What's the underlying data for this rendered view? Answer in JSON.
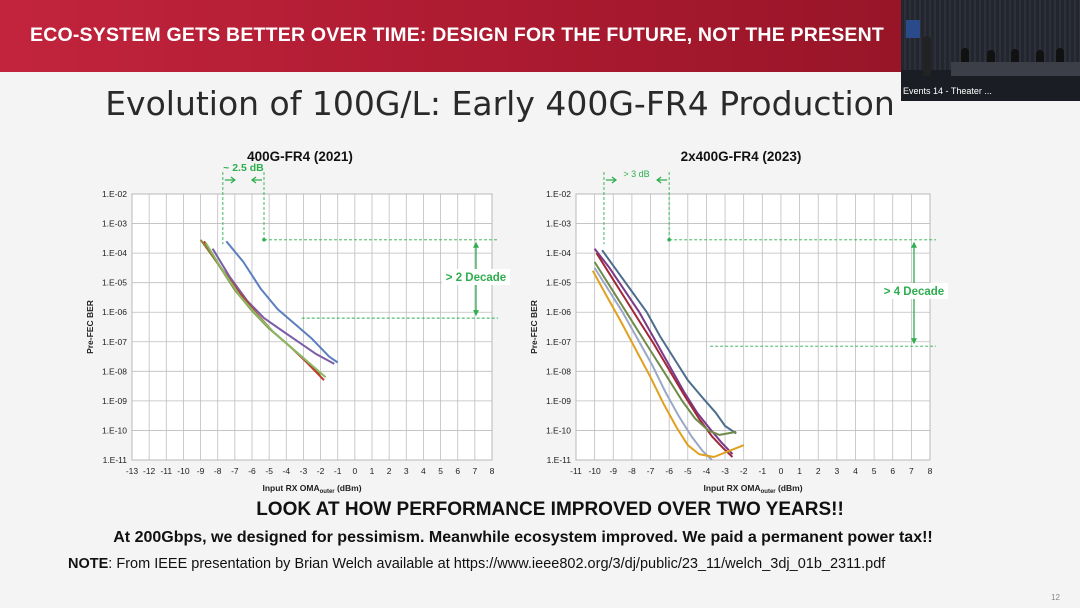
{
  "banner": {
    "title": "ECO-SYSTEM  GETS BETTER OVER TIME: DESIGN FOR THE FUTURE, NOT THE PRESENT"
  },
  "video": {
    "caption": "Events 14 - Theater ..."
  },
  "slide": {
    "title": "Evolution of 100G/L: Early 400G-FR4 Production",
    "headline": "LOOK AT HOW PERFORMANCE IMPROVED OVER TWO YEARS!!",
    "subline": "At 200Gbps, we designed for pessimism. Meanwhile ecosystem improved. We paid a permanent power tax!!",
    "note_label": "NOTE",
    "note_text": ": From IEEE presentation by Brian Welch available at https://www.ieee802.org/3/dj/public/23_11/welch_3dj_01b_2311.pdf",
    "page_number": "12"
  },
  "colors": {
    "banner": "#b01e33",
    "annotation": "#2eae4f",
    "grid": "#bdbdbd"
  },
  "chart_data": [
    {
      "type": "line",
      "title": "400G-FR4 (2021)",
      "xlabel_main": "Input RX OMA",
      "xlabel_sub": "outer",
      "xlabel_unit": " (dBm)",
      "ylabel": "Pre-FEC BER",
      "x_ticks": [
        "-13",
        "-12",
        "-11",
        "-10",
        "-9",
        "-8",
        "-7",
        "-6",
        "-5",
        "-4",
        "-3",
        "-2",
        "-1",
        "0",
        "1",
        "2",
        "3",
        "4",
        "5",
        "6",
        "7",
        "8"
      ],
      "y_ticks": [
        "1.E-02",
        "1.E-03",
        "1.E-04",
        "1.E-05",
        "1.E-06",
        "1.E-07",
        "1.E-08",
        "1.E-09",
        "1.E-10",
        "1.E-11"
      ],
      "xlim": [
        -13,
        8
      ],
      "ylim_exp": [
        -11,
        -2
      ],
      "y_scale": "log",
      "grid": true,
      "series": [
        {
          "color": "#5a7fc0",
          "points": [
            [
              -7.5,
              -3.6
            ],
            [
              -6.5,
              -4.3
            ],
            [
              -5.5,
              -5.2
            ],
            [
              -4.5,
              -5.9
            ],
            [
              -3.5,
              -6.4
            ],
            [
              -2.5,
              -6.9
            ],
            [
              -1.5,
              -7.5
            ],
            [
              -1,
              -7.7
            ]
          ]
        },
        {
          "color": "#7a5da6",
          "points": [
            [
              -8.3,
              -3.85
            ],
            [
              -7.3,
              -4.8
            ],
            [
              -6.3,
              -5.6
            ],
            [
              -5.3,
              -6.2
            ],
            [
              -4.3,
              -6.6
            ],
            [
              -3.3,
              -7.0
            ],
            [
              -2.3,
              -7.4
            ],
            [
              -1.2,
              -7.75
            ]
          ]
        },
        {
          "color": "#8a8a3a",
          "points": [
            [
              -9,
              -3.55
            ],
            [
              -8,
              -4.35
            ],
            [
              -7,
              -5.25
            ],
            [
              -6,
              -5.95
            ],
            [
              -5,
              -6.55
            ],
            [
              -4,
              -7.05
            ],
            [
              -3,
              -7.55
            ],
            [
              -2,
              -8.1
            ]
          ]
        },
        {
          "color": "#c0392b",
          "points": [
            [
              -8.8,
              -3.6
            ],
            [
              -7.8,
              -4.5
            ],
            [
              -6.8,
              -5.3
            ],
            [
              -5.8,
              -6.0
            ],
            [
              -4.8,
              -6.65
            ],
            [
              -3.8,
              -7.15
            ],
            [
              -2.8,
              -7.7
            ],
            [
              -1.8,
              -8.3
            ]
          ]
        },
        {
          "color": "#88bb66",
          "points": [
            [
              -8.7,
              -3.65
            ],
            [
              -7.7,
              -4.6
            ],
            [
              -6.7,
              -5.45
            ],
            [
              -5.7,
              -6.1
            ],
            [
              -4.7,
              -6.7
            ],
            [
              -3.7,
              -7.2
            ],
            [
              -2.7,
              -7.7
            ],
            [
              -1.7,
              -8.2
            ]
          ]
        }
      ],
      "annotations": {
        "dx_label": "~ 2.5 dB",
        "dx_from": -7.7,
        "dx_to": -5.3,
        "decade_label": "> 2 Decade",
        "decade_from_exp": -3.55,
        "decade_to_exp": -6.2
      }
    },
    {
      "type": "line",
      "title": "2x400G-FR4 (2023)",
      "xlabel_main": "Input RX OMA",
      "xlabel_sub": "outer",
      "xlabel_unit": " (dBm)",
      "ylabel": "Pre-FEC BER",
      "x_ticks": [
        "-11",
        "-10",
        "-9",
        "-8",
        "-7",
        "-6",
        "-5",
        "-4",
        "-3",
        "-2",
        "-1",
        "0",
        "1",
        "2",
        "3",
        "4",
        "5",
        "6",
        "7",
        "8"
      ],
      "y_ticks": [
        "1.E-02",
        "1.E-03",
        "1.E-04",
        "1.E-05",
        "1.E-06",
        "1.E-07",
        "1.E-08",
        "1.E-09",
        "1.E-10",
        "1.E-11"
      ],
      "xlim": [
        -11,
        8
      ],
      "ylim_exp": [
        -11,
        -2
      ],
      "y_scale": "log",
      "grid": true,
      "series": [
        {
          "color": "#4c6d8c",
          "points": [
            [
              -9.6,
              -3.9
            ],
            [
              -8.8,
              -4.6
            ],
            [
              -8,
              -5.3
            ],
            [
              -7.2,
              -6.0
            ],
            [
              -6.5,
              -6.8
            ],
            [
              -5.8,
              -7.5
            ],
            [
              -5,
              -8.3
            ],
            [
              -4.2,
              -8.9
            ],
            [
              -3.5,
              -9.4
            ],
            [
              -3,
              -9.85
            ],
            [
              -2.4,
              -10.1
            ]
          ]
        },
        {
          "color": "#7a3a8a",
          "points": [
            [
              -10,
              -3.85
            ],
            [
              -9.2,
              -4.5
            ],
            [
              -8.4,
              -5.25
            ],
            [
              -7.6,
              -6.0
            ],
            [
              -6.8,
              -6.9
            ],
            [
              -6,
              -7.8
            ],
            [
              -5.2,
              -8.7
            ],
            [
              -4.5,
              -9.4
            ],
            [
              -3.8,
              -9.95
            ],
            [
              -3.2,
              -10.4
            ],
            [
              -2.6,
              -10.8
            ]
          ]
        },
        {
          "color": "#a02838",
          "points": [
            [
              -9.9,
              -4.0
            ],
            [
              -9.2,
              -4.7
            ],
            [
              -8.4,
              -5.5
            ],
            [
              -7.6,
              -6.3
            ],
            [
              -6.8,
              -7.1
            ],
            [
              -6,
              -7.95
            ],
            [
              -5.2,
              -8.8
            ],
            [
              -4.4,
              -9.6
            ],
            [
              -3.7,
              -10.2
            ],
            [
              -3.1,
              -10.6
            ],
            [
              -2.6,
              -10.9
            ]
          ]
        },
        {
          "color": "#6f8a4a",
          "points": [
            [
              -10,
              -4.3
            ],
            [
              -9.3,
              -5.0
            ],
            [
              -8.5,
              -5.8
            ],
            [
              -7.7,
              -6.6
            ],
            [
              -6.9,
              -7.4
            ],
            [
              -6.1,
              -8.2
            ],
            [
              -5.3,
              -9.0
            ],
            [
              -4.6,
              -9.6
            ],
            [
              -3.9,
              -10.0
            ],
            [
              -3.3,
              -10.15
            ],
            [
              -2.4,
              -10.05
            ]
          ]
        },
        {
          "color": "#9aa8c8",
          "points": [
            [
              -10,
              -4.5
            ],
            [
              -9.3,
              -5.2
            ],
            [
              -8.5,
              -6.0
            ],
            [
              -7.7,
              -6.9
            ],
            [
              -6.9,
              -7.8
            ],
            [
              -6.2,
              -8.7
            ],
            [
              -5.5,
              -9.5
            ],
            [
              -4.8,
              -10.2
            ],
            [
              -4.2,
              -10.7
            ],
            [
              -3.7,
              -11.0
            ]
          ]
        },
        {
          "color": "#e0a020",
          "points": [
            [
              -10.1,
              -4.6
            ],
            [
              -9.4,
              -5.4
            ],
            [
              -8.6,
              -6.3
            ],
            [
              -7.8,
              -7.25
            ],
            [
              -7,
              -8.2
            ],
            [
              -6.3,
              -9.1
            ],
            [
              -5.6,
              -9.9
            ],
            [
              -5,
              -10.5
            ],
            [
              -4.4,
              -10.8
            ],
            [
              -3.6,
              -10.9
            ],
            [
              -2.8,
              -10.7
            ],
            [
              -2,
              -10.5
            ]
          ]
        }
      ],
      "annotations": {
        "dx_label": "> 3 dB",
        "dx_from": -9.5,
        "dx_to": -6,
        "decade_label": "> 4 Decade",
        "decade_from_exp": -3.55,
        "decade_to_exp": -7.15
      }
    }
  ]
}
